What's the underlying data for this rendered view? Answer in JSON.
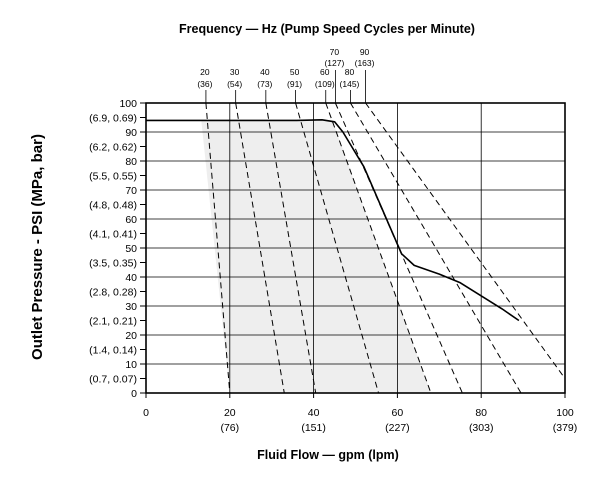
{
  "chart_data": {
    "type": "line",
    "title": "Frequency — Hz (Pump Speed Cycles per Minute)",
    "xlabel": "Fluid Flow — gpm (lpm)",
    "ylabel": "Outlet Pressure - PSI (MPa, bar)",
    "xlim": [
      0,
      100
    ],
    "ylim": [
      0,
      100
    ],
    "x_ticks": [
      {
        "value": 0,
        "label": "0",
        "sublabel": ""
      },
      {
        "value": 20,
        "label": "20",
        "sublabel": "(76)"
      },
      {
        "value": 40,
        "label": "40",
        "sublabel": "(151)"
      },
      {
        "value": 60,
        "label": "60",
        "sublabel": "(227)"
      },
      {
        "value": 80,
        "label": "80",
        "sublabel": "(303)"
      },
      {
        "value": 100,
        "label": "100",
        "sublabel": "(379)"
      }
    ],
    "y_ticks": [
      {
        "value": 100,
        "label": "100"
      },
      {
        "value": 95,
        "label": "(6.9, 0.69)"
      },
      {
        "value": 90,
        "label": "90"
      },
      {
        "value": 85,
        "label": "(6.2, 0.62)"
      },
      {
        "value": 80,
        "label": "80"
      },
      {
        "value": 75,
        "label": "(5.5, 0.55)"
      },
      {
        "value": 70,
        "label": "70"
      },
      {
        "value": 65,
        "label": "(4.8, 0.48)"
      },
      {
        "value": 60,
        "label": "60"
      },
      {
        "value": 55,
        "label": "(4.1, 0.41)"
      },
      {
        "value": 50,
        "label": "50"
      },
      {
        "value": 45,
        "label": "(3.5, 0.35)"
      },
      {
        "value": 40,
        "label": "40"
      },
      {
        "value": 35,
        "label": "(2.8, 0.28)"
      },
      {
        "value": 30,
        "label": "30"
      },
      {
        "value": 25,
        "label": "(2.1, 0.21)"
      },
      {
        "value": 20,
        "label": "20"
      },
      {
        "value": 15,
        "label": "(1.4, 0.14)"
      },
      {
        "value": 10,
        "label": "10"
      },
      {
        "value": 5,
        "label": "(0.7, 0.07)"
      },
      {
        "value": 0,
        "label": "0"
      }
    ],
    "grid": true,
    "frequency_lines": [
      {
        "hz": "20",
        "cpm": "(36)",
        "top": [
          14.3,
          100
        ],
        "bottom": [
          20,
          0
        ]
      },
      {
        "hz": "30",
        "cpm": "(54)",
        "top": [
          21.4,
          100
        ],
        "bottom": [
          33,
          0
        ]
      },
      {
        "hz": "40",
        "cpm": "(73)",
        "top": [
          28.6,
          100
        ],
        "bottom": [
          40.5,
          0
        ]
      },
      {
        "hz": "50",
        "cpm": "(91)",
        "top": [
          35.7,
          100
        ],
        "bottom": [
          55.5,
          0
        ]
      },
      {
        "hz": "60",
        "cpm": "(109)",
        "top": [
          42.9,
          100
        ],
        "bottom": [
          68,
          0
        ]
      },
      {
        "hz": "70",
        "cpm": "(127)",
        "top": [
          45.2,
          100
        ],
        "bottom": [
          75.5,
          0
        ]
      },
      {
        "hz": "80",
        "cpm": "(145)",
        "top": [
          48.8,
          100
        ],
        "bottom": [
          89.5,
          0
        ]
      },
      {
        "hz": "90",
        "cpm": "(163)",
        "top": [
          52.4,
          100
        ],
        "bottom": [
          100,
          5
        ]
      }
    ],
    "operating_region": [
      [
        13.2,
        94
      ],
      [
        44.5,
        94
      ],
      [
        68,
        0
      ],
      [
        20,
        0
      ]
    ],
    "performance_curve": [
      [
        0,
        94
      ],
      [
        36,
        94
      ],
      [
        42,
        94.2
      ],
      [
        45,
        93.5
      ],
      [
        47,
        90
      ],
      [
        52,
        78
      ],
      [
        58,
        58
      ],
      [
        61,
        48
      ],
      [
        64,
        44
      ],
      [
        70,
        41
      ],
      [
        75,
        38
      ],
      [
        85,
        29
      ],
      [
        89,
        25
      ]
    ]
  }
}
